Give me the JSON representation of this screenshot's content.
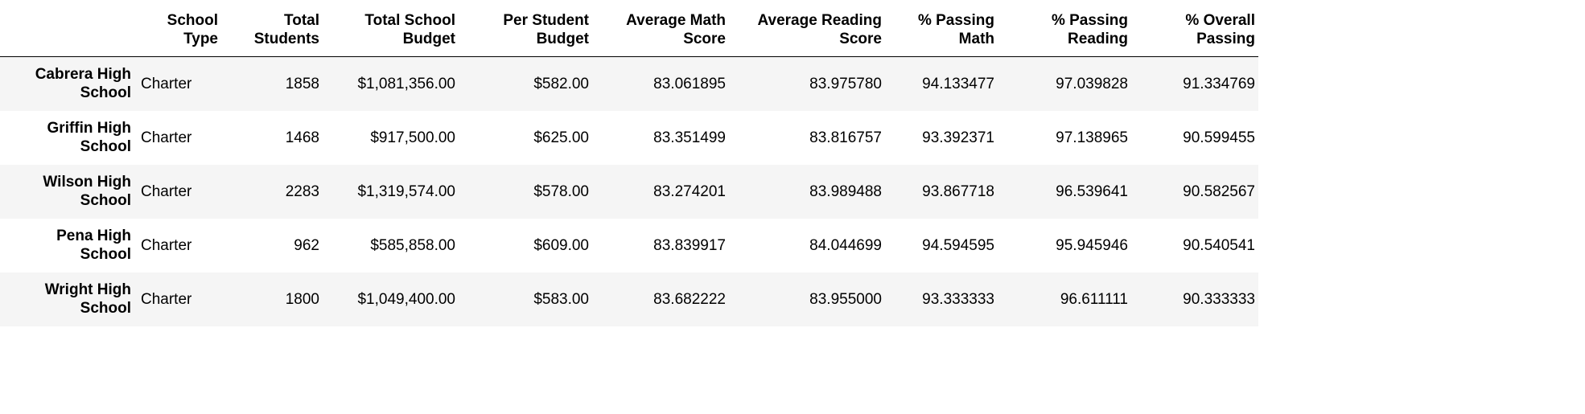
{
  "table": {
    "columns": [
      "",
      "School Type",
      "Total Students",
      "Total School Budget",
      "Per Student Budget",
      "Average Math Score",
      "Average Reading Score",
      "% Passing Math",
      "% Passing Reading",
      "% Overall Passing"
    ],
    "rows": [
      {
        "index": "Cabrera High School",
        "cells": [
          "Charter",
          "1858",
          "$1,081,356.00",
          "$582.00",
          "83.061895",
          "83.975780",
          "94.133477",
          "97.039828",
          "91.334769"
        ]
      },
      {
        "index": "Griffin High School",
        "cells": [
          "Charter",
          "1468",
          "$917,500.00",
          "$625.00",
          "83.351499",
          "83.816757",
          "93.392371",
          "97.138965",
          "90.599455"
        ]
      },
      {
        "index": "Wilson High School",
        "cells": [
          "Charter",
          "2283",
          "$1,319,574.00",
          "$578.00",
          "83.274201",
          "83.989488",
          "93.867718",
          "96.539641",
          "90.582567"
        ]
      },
      {
        "index": "Pena High School",
        "cells": [
          "Charter",
          "962",
          "$585,858.00",
          "$609.00",
          "83.839917",
          "84.044699",
          "94.594595",
          "95.945946",
          "90.540541"
        ]
      },
      {
        "index": "Wright High School",
        "cells": [
          "Charter",
          "1800",
          "$1,049,400.00",
          "$583.00",
          "83.682222",
          "83.955000",
          "93.333333",
          "96.611111",
          "90.333333"
        ]
      }
    ]
  }
}
